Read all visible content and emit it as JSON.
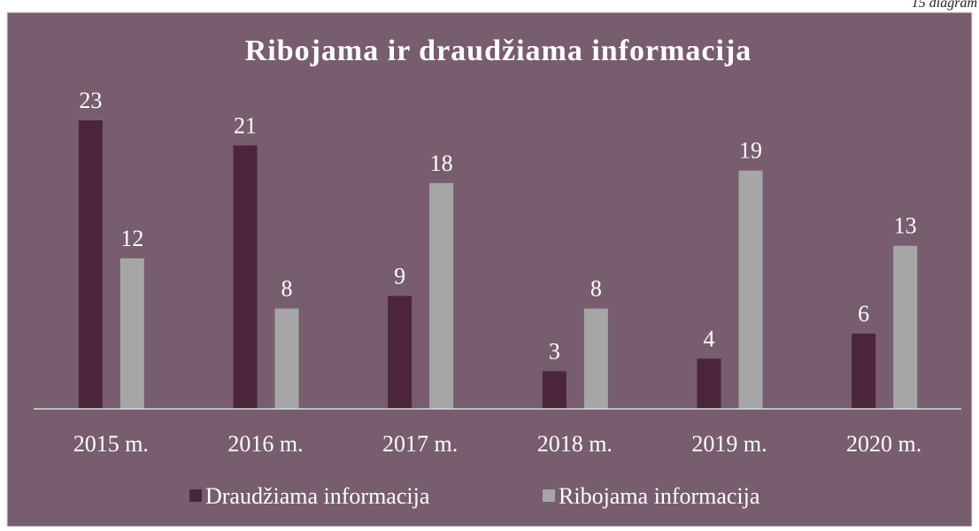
{
  "caption": "15 diagram",
  "chart_data": {
    "type": "bar",
    "title": "Ribojama ir draudžiama informacija",
    "categories": [
      "2015 m.",
      "2016 m.",
      "2017 m.",
      "2018 m.",
      "2019 m.",
      "2020 m."
    ],
    "series": [
      {
        "name": "Draudžiama informacija",
        "color": "#4b263b",
        "values": [
          23,
          21,
          9,
          3,
          4,
          6
        ]
      },
      {
        "name": "Ribojama informacija",
        "color": "#a6a6a6",
        "values": [
          12,
          8,
          18,
          8,
          19,
          13
        ]
      }
    ],
    "legend": "bottom"
  }
}
